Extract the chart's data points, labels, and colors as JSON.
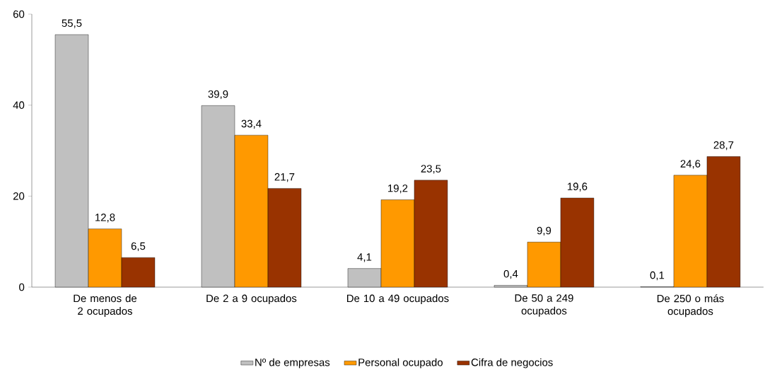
{
  "chart_data": {
    "type": "bar",
    "categories": [
      "De menos de 2 ocupados",
      "De 2 a 9 ocupados",
      "De 10 a 49 ocupados",
      "De 50 a 249 ocupados",
      "De 250 o más ocupados"
    ],
    "series": [
      {
        "name": "Nº de empresas",
        "color": "#c0c0c0",
        "values": [
          55.5,
          39.9,
          4.1,
          0.4,
          0.1
        ],
        "value_labels": [
          "55,5",
          "39,9",
          "4,1",
          "0,4",
          "0,1"
        ]
      },
      {
        "name": "Personal ocupado",
        "color": "#ff9900",
        "values": [
          12.8,
          33.4,
          19.2,
          9.9,
          24.6
        ],
        "value_labels": [
          "12,8",
          "33,4",
          "19,2",
          "9,9",
          "24,6"
        ]
      },
      {
        "name": "Cifra de negocios",
        "color": "#993300",
        "values": [
          6.5,
          21.7,
          23.5,
          19.6,
          28.7
        ],
        "value_labels": [
          "6,5",
          "21,7",
          "23,5",
          "19,6",
          "28,7"
        ]
      }
    ],
    "ylim": [
      0,
      60
    ],
    "yticks": [
      0,
      20,
      40,
      60
    ],
    "grid": false,
    "legend": "bottom"
  }
}
